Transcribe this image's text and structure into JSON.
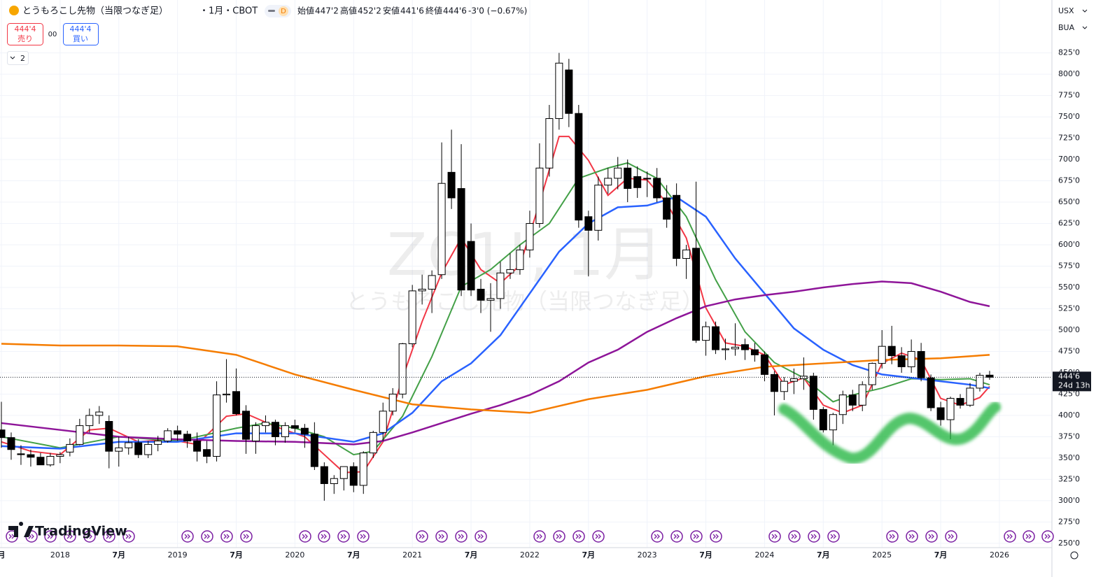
{
  "header": {
    "title": "とうもろこし先物（当限つなぎ足）",
    "meta": "・1月・CBOT",
    "badge": "D",
    "ohlc": [
      {
        "label": "始値",
        "value": "447'2"
      },
      {
        "label": "高値",
        "value": "452'2"
      },
      {
        "label": "安値",
        "value": "441'6"
      },
      {
        "label": "終値",
        "value": "444'6"
      }
    ],
    "change": "-3'0 (−0.67%)"
  },
  "trade": {
    "sell_price": "444'4",
    "sell": "売り",
    "spread": "00",
    "buy_price": "444'4",
    "buy": "買い",
    "indicators": "2"
  },
  "scale": {
    "currency": "USX",
    "unit": "BUA"
  },
  "watermark": {
    "symbol": "ZC1!, 1月",
    "name": "とうもろこし先物（当限つなぎ足）"
  },
  "logo": "TradingView",
  "chart_data": {
    "type": "candlestick",
    "categories": [
      "2017-07",
      "2017-08",
      "2017-09",
      "2017-10",
      "2017-11",
      "2017-12",
      "2018-01",
      "2018-02",
      "2018-03",
      "2018-04",
      "2018-05",
      "2018-06",
      "2018-07",
      "2018-08",
      "2018-09",
      "2018-10",
      "2018-11",
      "2018-12",
      "2019-01",
      "2019-02",
      "2019-03",
      "2019-04",
      "2019-05",
      "2019-06",
      "2019-07",
      "2019-08",
      "2019-09",
      "2019-10",
      "2019-11",
      "2019-12",
      "2020-01",
      "2020-02",
      "2020-03",
      "2020-04",
      "2020-05",
      "2020-06",
      "2020-07",
      "2020-08",
      "2020-09",
      "2020-10",
      "2020-11",
      "2020-12",
      "2021-01",
      "2021-02",
      "2021-03",
      "2021-04",
      "2021-05",
      "2021-06",
      "2021-07",
      "2021-08",
      "2021-09",
      "2021-10",
      "2021-11",
      "2021-12",
      "2022-01",
      "2022-02",
      "2022-03",
      "2022-04",
      "2022-05",
      "2022-06",
      "2022-07",
      "2022-08",
      "2022-09",
      "2022-10",
      "2022-11",
      "2022-12",
      "2023-01",
      "2023-02",
      "2023-03",
      "2023-04",
      "2023-05",
      "2023-06",
      "2023-07",
      "2023-08",
      "2023-09",
      "2023-10",
      "2023-11",
      "2023-12",
      "2024-01",
      "2024-02",
      "2024-03",
      "2024-04",
      "2024-05",
      "2024-06",
      "2024-07",
      "2024-08",
      "2024-09",
      "2024-10",
      "2024-11",
      "2024-12",
      "2025-01",
      "2025-02",
      "2025-03",
      "2025-04",
      "2025-05",
      "2025-06",
      "2025-07",
      "2025-08",
      "2025-09",
      "2025-10",
      "2025-11",
      "2025-12"
    ],
    "open": [
      383,
      374,
      355,
      354,
      351,
      342,
      352,
      357,
      366,
      388,
      400,
      393,
      358,
      362,
      368,
      354,
      366,
      370,
      382,
      378,
      370,
      360,
      352,
      424,
      428,
      405,
      370,
      388,
      392,
      375,
      388,
      385,
      378,
      340,
      320,
      326,
      340,
      318,
      356,
      380,
      405,
      425,
      484,
      546,
      548,
      565,
      685,
      666,
      604,
      548,
      535,
      537,
      567,
      571,
      594,
      625,
      690,
      748,
      805,
      754,
      633,
      617,
      670,
      678,
      690,
      680,
      678,
      678,
      655,
      658,
      584,
      596,
      488,
      504,
      477,
      478,
      483,
      477,
      471,
      448,
      428,
      440,
      443,
      446,
      407,
      383,
      401,
      424,
      412,
      436,
      461,
      481,
      470,
      457,
      475,
      444,
      409,
      395,
      420,
      412,
      432,
      447.25
    ],
    "high": [
      416,
      380,
      365,
      360,
      356,
      356,
      357,
      373,
      396,
      408,
      411,
      400,
      375,
      375,
      372,
      370,
      376,
      385,
      388,
      382,
      380,
      370,
      440,
      466,
      455,
      412,
      392,
      400,
      395,
      392,
      395,
      390,
      392,
      345,
      330,
      340,
      345,
      358,
      382,
      415,
      432,
      485,
      553,
      565,
      570,
      720,
      735,
      718,
      625,
      560,
      555,
      580,
      590,
      600,
      640,
      719,
      764,
      825,
      818,
      764,
      640,
      680,
      690,
      703,
      700,
      692,
      686,
      690,
      670,
      672,
      600,
      674,
      510,
      510,
      490,
      508,
      490,
      485,
      475,
      452,
      445,
      455,
      468,
      450,
      410,
      403,
      429,
      430,
      440,
      462,
      500,
      505,
      480,
      489,
      485,
      448,
      416,
      422,
      425,
      438,
      450,
      452.25
    ],
    "low": [
      362,
      348,
      342,
      340,
      342,
      340,
      344,
      352,
      365,
      380,
      390,
      338,
      340,
      354,
      350,
      350,
      358,
      368,
      370,
      362,
      346,
      344,
      346,
      415,
      400,
      355,
      355,
      380,
      365,
      368,
      380,
      362,
      336,
      300,
      308,
      312,
      310,
      308,
      350,
      370,
      400,
      420,
      480,
      530,
      520,
      560,
      642,
      540,
      540,
      520,
      498,
      525,
      560,
      565,
      585,
      620,
      680,
      735,
      738,
      620,
      563,
      605,
      660,
      665,
      650,
      655,
      656,
      650,
      620,
      575,
      560,
      485,
      470,
      472,
      465,
      470,
      465,
      463,
      440,
      400,
      418,
      425,
      430,
      395,
      380,
      365,
      390,
      405,
      405,
      430,
      455,
      460,
      450,
      450,
      440,
      405,
      388,
      372,
      408,
      410,
      428,
      441.75
    ],
    "close": [
      374,
      360,
      354,
      351,
      342,
      352,
      354,
      366,
      388,
      400,
      404,
      358,
      362,
      368,
      354,
      366,
      370,
      382,
      378,
      370,
      358,
      352,
      424,
      425,
      402,
      372,
      388,
      392,
      375,
      388,
      385,
      378,
      340,
      320,
      326,
      340,
      318,
      356,
      380,
      405,
      425,
      484,
      546,
      548,
      564,
      672,
      655,
      547,
      547,
      535,
      537,
      567,
      571,
      594,
      625,
      690,
      748,
      813,
      754,
      629,
      617,
      670,
      678,
      690,
      666,
      667,
      678,
      655,
      630,
      584,
      594,
      488,
      504,
      477,
      478,
      480,
      477,
      471,
      448,
      428,
      440,
      443,
      446,
      407,
      383,
      401,
      424,
      412,
      436,
      461,
      481,
      470,
      457,
      475,
      444,
      409,
      395,
      420,
      412,
      432,
      447,
      444.75
    ],
    "up_color": "#ffffff",
    "down_color": "#000000",
    "overlays": [
      {
        "color": "#f23645",
        "x": [
          "2017-07",
          "2017-10",
          "2018-01",
          "2018-04",
          "2018-06",
          "2018-09",
          "2018-12",
          "2019-03",
          "2019-06",
          "2019-08",
          "2019-11",
          "2020-02",
          "2020-04",
          "2020-06",
          "2020-08",
          "2020-10",
          "2020-12",
          "2021-02",
          "2021-04",
          "2021-06",
          "2021-08",
          "2021-10",
          "2021-12",
          "2022-02",
          "2022-04",
          "2022-05",
          "2022-07",
          "2022-09",
          "2022-11",
          "2023-01",
          "2023-03",
          "2023-05",
          "2023-07",
          "2023-09",
          "2023-11",
          "2024-01",
          "2024-03",
          "2024-05",
          "2024-07",
          "2024-09",
          "2024-11",
          "2025-01",
          "2025-03",
          "2025-05",
          "2025-07",
          "2025-09",
          "2025-11",
          "2025-12"
        ],
        "values": [
          369,
          358,
          354,
          383,
          385,
          369,
          372,
          366,
          399,
          402,
          387,
          375,
          354,
          333,
          334,
          369,
          444,
          510,
          567,
          608,
          571,
          555,
          576,
          649,
          727,
          727,
          699,
          658,
          678,
          676,
          649,
          608,
          526,
          485,
          481,
          471,
          436,
          444,
          412,
          403,
          412,
          461,
          473,
          465,
          420,
          412,
          421,
          434
        ]
      },
      {
        "color": "#43a047",
        "x": [
          "2017-07",
          "2018-01",
          "2018-07",
          "2019-01",
          "2019-07",
          "2019-10",
          "2020-01",
          "2020-04",
          "2020-07",
          "2020-09",
          "2020-12",
          "2021-03",
          "2021-06",
          "2021-09",
          "2021-12",
          "2022-03",
          "2022-06",
          "2022-09",
          "2022-11",
          "2023-02",
          "2023-05",
          "2023-08",
          "2023-11",
          "2024-02",
          "2024-05",
          "2024-08",
          "2024-10",
          "2025-01",
          "2025-04",
          "2025-07",
          "2025-10",
          "2025-12"
        ],
        "values": [
          375,
          362,
          375,
          370,
          385,
          391,
          385,
          375,
          354,
          358,
          399,
          469,
          551,
          571,
          600,
          625,
          678,
          690,
          696,
          678,
          633,
          559,
          498,
          462,
          444,
          416,
          424,
          432,
          443,
          442,
          443,
          436
        ]
      },
      {
        "color": "#2962ff",
        "x": [
          "2017-07",
          "2018-01",
          "2018-07",
          "2019-01",
          "2019-07",
          "2020-01",
          "2020-07",
          "2020-10",
          "2021-01",
          "2021-04",
          "2021-07",
          "2021-10",
          "2022-01",
          "2022-04",
          "2022-07",
          "2022-10",
          "2023-01",
          "2023-04",
          "2023-07",
          "2023-10",
          "2024-01",
          "2024-04",
          "2024-07",
          "2024-10",
          "2025-01",
          "2025-04",
          "2025-07",
          "2025-10",
          "2025-12"
        ],
        "values": [
          364,
          361,
          369,
          369,
          379,
          379,
          369,
          379,
          403,
          440,
          461,
          494,
          543,
          592,
          625,
          644,
          646,
          656,
          633,
          584,
          543,
          502,
          477,
          459,
          448,
          444,
          440,
          436,
          432
        ]
      },
      {
        "color": "#8e1599",
        "x": [
          "2017-07",
          "2018-01",
          "2018-07",
          "2019-01",
          "2019-07",
          "2020-01",
          "2020-07",
          "2020-10",
          "2021-01",
          "2021-04",
          "2021-07",
          "2021-10",
          "2022-01",
          "2022-04",
          "2022-07",
          "2022-10",
          "2023-01",
          "2023-04",
          "2023-07",
          "2023-10",
          "2024-01",
          "2024-04",
          "2024-07",
          "2024-10",
          "2025-01",
          "2025-04",
          "2025-07",
          "2025-10",
          "2025-12"
        ],
        "values": [
          391,
          383,
          375,
          372,
          370,
          369,
          366,
          370,
          380,
          391,
          402,
          412,
          424,
          440,
          462,
          477,
          498,
          514,
          528,
          536,
          541,
          545,
          550,
          554,
          557,
          555,
          545,
          533,
          528
        ]
      },
      {
        "color": "#f57c00",
        "x": [
          "2017-07",
          "2018-01",
          "2018-07",
          "2019-01",
          "2019-07",
          "2020-01",
          "2020-07",
          "2021-01",
          "2021-07",
          "2022-01",
          "2022-07",
          "2023-01",
          "2023-07",
          "2024-01",
          "2024-07",
          "2025-01",
          "2025-07",
          "2025-12"
        ],
        "values": [
          484,
          482,
          482,
          481,
          471,
          448,
          430,
          413,
          407,
          403,
          419,
          430,
          446,
          457,
          461,
          465,
          467,
          471
        ]
      }
    ],
    "last_price": {
      "value": 444.75,
      "label": "444'6",
      "countdown": "24d 13h"
    },
    "ylim": [
      245,
      887
    ],
    "yticks": [
      {
        "value": 250,
        "label": "250'0"
      },
      {
        "value": 275,
        "label": "275'0"
      },
      {
        "value": 300,
        "label": "300'0"
      },
      {
        "value": 325,
        "label": "325'0"
      },
      {
        "value": 350,
        "label": "350'0"
      },
      {
        "value": 375,
        "label": "375'0"
      },
      {
        "value": 400,
        "label": "400'0"
      },
      {
        "value": 425,
        "label": "425'0"
      },
      {
        "value": 450,
        "label": "450'0"
      },
      {
        "value": 475,
        "label": "475'0"
      },
      {
        "value": 500,
        "label": "500'0"
      },
      {
        "value": 525,
        "label": "525'0"
      },
      {
        "value": 550,
        "label": "550'0"
      },
      {
        "value": 575,
        "label": "575'0"
      },
      {
        "value": 600,
        "label": "600'0"
      },
      {
        "value": 625,
        "label": "625'0"
      },
      {
        "value": 650,
        "label": "650'0"
      },
      {
        "value": 675,
        "label": "675'0"
      },
      {
        "value": 700,
        "label": "700'0"
      },
      {
        "value": 725,
        "label": "725'0"
      },
      {
        "value": 750,
        "label": "750'0"
      },
      {
        "value": 775,
        "label": "775'0"
      },
      {
        "value": 800,
        "label": "800'0"
      },
      {
        "value": 825,
        "label": "825'0"
      }
    ],
    "x_axis_labels": [
      "月",
      "2018",
      "7月",
      "2019",
      "7月",
      "2020",
      "7月",
      "2021",
      "7月",
      "2022",
      "7月",
      "2023",
      "7月",
      "2024",
      "7月",
      "2025",
      "7月",
      "2026"
    ],
    "grid": true
  }
}
